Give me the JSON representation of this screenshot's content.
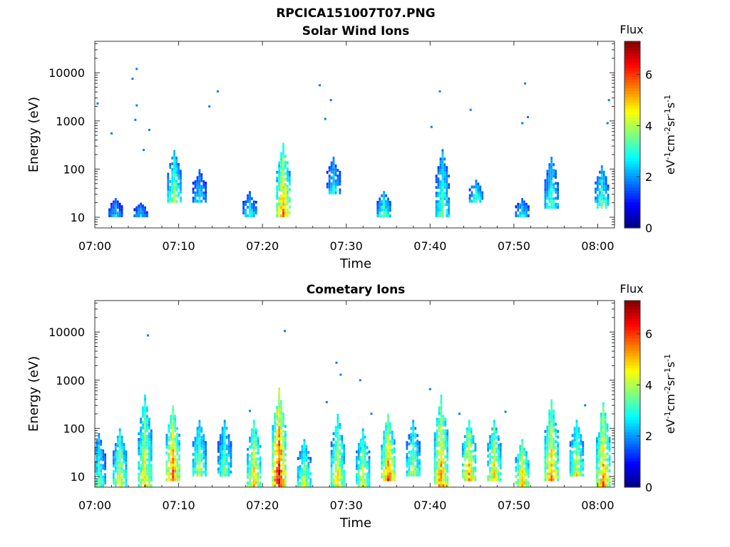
{
  "page_title": "RPCICA151007T07.PNG",
  "chart_data": [
    {
      "type": "heatmap",
      "title": "Solar Wind Ions",
      "xlabel": "Time",
      "ylabel": "Energy (eV)",
      "yscale": "log",
      "ylim": [
        6,
        45000
      ],
      "xlim": [
        "07:00",
        "08:02"
      ],
      "x_ticks": [
        "07:00",
        "07:10",
        "07:20",
        "07:30",
        "07:40",
        "07:50",
        "08:00"
      ],
      "y_ticks": [
        "10",
        "100",
        "1000",
        "10000"
      ],
      "colorbar": {
        "title": "Flux",
        "unit": "eV-1cm-2sr-1s-1",
        "range": [
          0,
          7.3
        ],
        "ticks": [
          "0",
          "2",
          "4",
          "6"
        ],
        "colormap": "jet"
      },
      "bursts": [
        {
          "t": "07:02:30",
          "emin": 10,
          "emax": 25,
          "level": 2.5
        },
        {
          "t": "07:05:30",
          "emin": 10,
          "emax": 20,
          "level": 2.6
        },
        {
          "t": "07:09:30",
          "emin": 20,
          "emax": 250,
          "level": 4.0
        },
        {
          "t": "07:12:30",
          "emin": 20,
          "emax": 100,
          "level": 2.8
        },
        {
          "t": "07:18:30",
          "emin": 10,
          "emax": 35,
          "level": 3.0
        },
        {
          "t": "07:22:30",
          "emin": 10,
          "emax": 350,
          "level": 5.5
        },
        {
          "t": "07:28:30",
          "emin": 30,
          "emax": 180,
          "level": 3.0
        },
        {
          "t": "07:34:30",
          "emin": 10,
          "emax": 35,
          "level": 3.5
        },
        {
          "t": "07:41:30",
          "emin": 10,
          "emax": 260,
          "level": 3.6
        },
        {
          "t": "07:45:30",
          "emin": 20,
          "emax": 60,
          "level": 3.4
        },
        {
          "t": "07:51:00",
          "emin": 10,
          "emax": 25,
          "level": 3.0
        },
        {
          "t": "07:54:30",
          "emin": 15,
          "emax": 180,
          "level": 3.4
        },
        {
          "t": "08:00:30",
          "emin": 15,
          "emax": 120,
          "level": 3.6
        }
      ],
      "sparse_points": [
        {
          "t": "07:00:20",
          "e": 2300
        },
        {
          "t": "07:02:00",
          "e": 550
        },
        {
          "t": "07:04:30",
          "e": 7500
        },
        {
          "t": "07:05:00",
          "e": 12000
        },
        {
          "t": "07:05:00",
          "e": 2100
        },
        {
          "t": "07:04:50",
          "e": 1050
        },
        {
          "t": "07:05:50",
          "e": 250
        },
        {
          "t": "07:06:30",
          "e": 650
        },
        {
          "t": "07:13:40",
          "e": 2000
        },
        {
          "t": "07:14:40",
          "e": 4100
        },
        {
          "t": "07:26:50",
          "e": 5500
        },
        {
          "t": "07:28:10",
          "e": 2700
        },
        {
          "t": "07:27:30",
          "e": 1100
        },
        {
          "t": "07:41:10",
          "e": 4100
        },
        {
          "t": "07:40:10",
          "e": 750
        },
        {
          "t": "07:44:50",
          "e": 1700
        },
        {
          "t": "07:51:20",
          "e": 6000
        },
        {
          "t": "07:51:40",
          "e": 1200
        },
        {
          "t": "07:51:00",
          "e": 900
        },
        {
          "t": "08:01:20",
          "e": 2700
        },
        {
          "t": "08:01:10",
          "e": 900
        }
      ]
    },
    {
      "type": "heatmap",
      "title": "Cometary Ions",
      "xlabel": "Time",
      "ylabel": "Energy (eV)",
      "yscale": "log",
      "ylim": [
        6,
        45000
      ],
      "xlim": [
        "07:00",
        "08:02"
      ],
      "x_ticks": [
        "07:00",
        "07:10",
        "07:20",
        "07:30",
        "07:40",
        "07:50",
        "08:00"
      ],
      "y_ticks": [
        "10",
        "100",
        "1000",
        "10000"
      ],
      "colorbar": {
        "title": "Flux",
        "unit": "eV-1cm-2sr-1s-1",
        "range": [
          0,
          7.3
        ],
        "ticks": [
          "0",
          "2",
          "4",
          "6"
        ],
        "colormap": "jet"
      },
      "bursts": [
        {
          "t": "07:00:30",
          "emin": 6,
          "emax": 80,
          "level": 3.6
        },
        {
          "t": "07:03:00",
          "emin": 6,
          "emax": 100,
          "level": 4.6
        },
        {
          "t": "07:06:00",
          "emin": 6,
          "emax": 500,
          "level": 4.8
        },
        {
          "t": "07:09:20",
          "emin": 8,
          "emax": 300,
          "level": 5.8
        },
        {
          "t": "07:12:30",
          "emin": 10,
          "emax": 150,
          "level": 4.2
        },
        {
          "t": "07:15:30",
          "emin": 10,
          "emax": 150,
          "level": 3.8
        },
        {
          "t": "07:19:00",
          "emin": 6,
          "emax": 150,
          "level": 5.2
        },
        {
          "t": "07:22:00",
          "emin": 6,
          "emax": 700,
          "level": 6.6
        },
        {
          "t": "07:25:00",
          "emin": 6,
          "emax": 60,
          "level": 4.4
        },
        {
          "t": "07:29:00",
          "emin": 6,
          "emax": 200,
          "level": 4.8
        },
        {
          "t": "07:32:00",
          "emin": 6,
          "emax": 100,
          "level": 4.6
        },
        {
          "t": "07:35:00",
          "emin": 8,
          "emax": 200,
          "level": 5.8
        },
        {
          "t": "07:38:00",
          "emin": 10,
          "emax": 150,
          "level": 4.2
        },
        {
          "t": "07:41:20",
          "emin": 6,
          "emax": 500,
          "level": 5.6
        },
        {
          "t": "07:44:40",
          "emin": 8,
          "emax": 150,
          "level": 5.4
        },
        {
          "t": "07:47:40",
          "emin": 8,
          "emax": 150,
          "level": 5.0
        },
        {
          "t": "07:51:00",
          "emin": 6,
          "emax": 60,
          "level": 5.4
        },
        {
          "t": "07:54:30",
          "emin": 8,
          "emax": 400,
          "level": 5.4
        },
        {
          "t": "07:57:30",
          "emin": 10,
          "emax": 150,
          "level": 4.6
        },
        {
          "t": "08:00:40",
          "emin": 6,
          "emax": 350,
          "level": 5.6
        }
      ],
      "sparse_points": [
        {
          "t": "07:06:20",
          "e": 8500
        },
        {
          "t": "07:22:40",
          "e": 10500
        },
        {
          "t": "07:28:50",
          "e": 2300
        },
        {
          "t": "07:29:20",
          "e": 1300
        },
        {
          "t": "07:31:40",
          "e": 1000
        },
        {
          "t": "07:27:40",
          "e": 350
        },
        {
          "t": "07:33:00",
          "e": 200
        },
        {
          "t": "07:18:30",
          "e": 230
        },
        {
          "t": "07:43:30",
          "e": 200
        },
        {
          "t": "07:49:00",
          "e": 220
        },
        {
          "t": "07:58:30",
          "e": 300
        },
        {
          "t": "07:40:00",
          "e": 650
        }
      ]
    }
  ]
}
